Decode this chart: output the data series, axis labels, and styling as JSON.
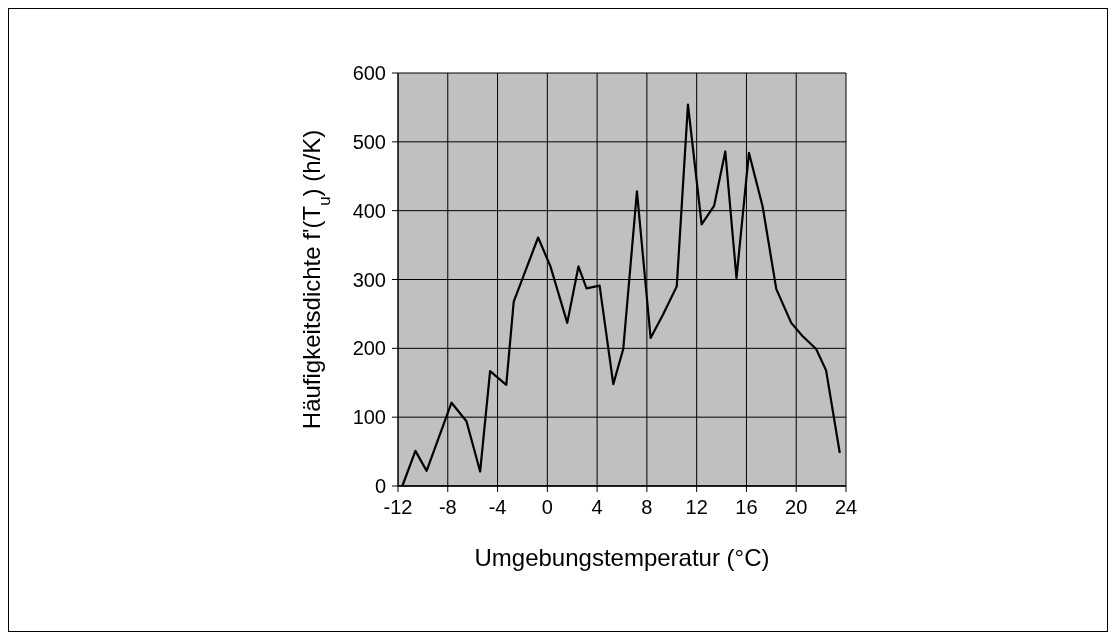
{
  "chart_data": {
    "type": "line",
    "xlabel": "Umgebungstemperatur (°C)",
    "ylabel": "Häufigkeitsdichte f'(T$_{u}$) (h/K)",
    "x": [
      -11.65,
      -10.6,
      -9.7,
      -7.7,
      -6.5,
      -5.4,
      -4.6,
      -3.3,
      -2.7,
      -0.74,
      0.25,
      1.6,
      2.5,
      3.15,
      4.2,
      5.3,
      6.1,
      7.2,
      8.3,
      9.3,
      10.4,
      11.3,
      12.4,
      13.4,
      14.3,
      15.2,
      16.2,
      17.3,
      18.4,
      19.6,
      20.5,
      21.6,
      22.4,
      23.5
    ],
    "series": [
      {
        "color": "#000000",
        "values": [
          0,
          51,
          22,
          121,
          94,
          21,
          167,
          147,
          268,
          361,
          319,
          237,
          319,
          287,
          291,
          148,
          199,
          428,
          215,
          249,
          290,
          554,
          380,
          407,
          486,
          302,
          484,
          406,
          286,
          237,
          218,
          199,
          168,
          48
        ]
      }
    ],
    "xlim": [
      -12,
      24
    ],
    "xticks": [
      -12,
      -8,
      -4,
      0,
      4,
      8,
      12,
      16,
      20,
      24
    ],
    "ylim": [
      0,
      600
    ],
    "yticks": [
      0,
      100,
      200,
      300,
      400,
      500,
      600
    ],
    "grid": true,
    "marker": "none",
    "line_style": "solid"
  }
}
